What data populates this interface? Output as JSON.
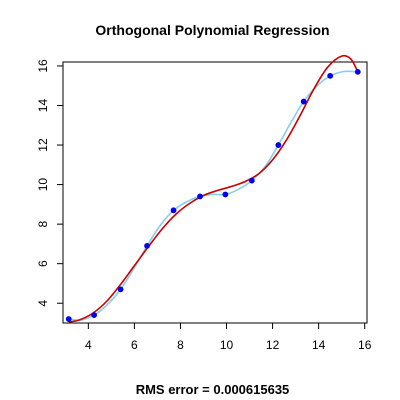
{
  "chart_data": {
    "type": "scatter",
    "title": "Orthogonal Polynomial Regression",
    "footer": "RMS error = 0.000615635",
    "xlim": [
      2.9,
      16.1
    ],
    "ylim": [
      3.0,
      16.2
    ],
    "x_ticks": [
      4,
      6,
      8,
      10,
      12,
      14,
      16
    ],
    "y_ticks": [
      4,
      6,
      8,
      10,
      12,
      14,
      16
    ],
    "colors": {
      "points": "#0000ee",
      "interpolant": "#87ceeb",
      "fit": "#cc0000",
      "axis": "#000000"
    },
    "points": {
      "x": [
        3.15,
        4.25,
        5.4,
        6.55,
        7.7,
        8.85,
        9.95,
        11.1,
        12.25,
        13.35,
        14.5,
        15.7
      ],
      "y": [
        3.2,
        3.4,
        4.7,
        6.9,
        8.7,
        9.4,
        9.5,
        10.2,
        12.0,
        14.2,
        15.5,
        15.7
      ]
    },
    "series": [
      {
        "style": "smooth interpolant",
        "x": [
          3.15,
          3.7,
          4.25,
          4.8,
          5.4,
          6.0,
          6.55,
          7.1,
          7.7,
          8.3,
          8.85,
          9.4,
          9.95,
          10.5,
          11.1,
          11.7,
          12.25,
          12.8,
          13.35,
          13.9,
          14.5,
          15.1,
          15.7
        ],
        "y": [
          3.2,
          3.15,
          3.4,
          3.9,
          4.7,
          5.8,
          6.9,
          7.9,
          8.7,
          9.15,
          9.4,
          9.5,
          9.5,
          9.75,
          10.2,
          10.95,
          12.0,
          13.15,
          14.2,
          14.95,
          15.5,
          15.72,
          15.7
        ]
      },
      {
        "style": "polynomial fit",
        "x": [
          3.15,
          3.6,
          4.2,
          4.8,
          5.4,
          6.0,
          6.6,
          7.2,
          7.8,
          8.4,
          9.0,
          9.6,
          10.2,
          10.8,
          11.4,
          12.0,
          12.6,
          13.2,
          13.8,
          14.4,
          15.0,
          15.4,
          15.7
        ],
        "y": [
          3.05,
          3.15,
          3.5,
          4.1,
          4.95,
          5.9,
          6.85,
          7.75,
          8.5,
          9.05,
          9.45,
          9.7,
          9.9,
          10.15,
          10.55,
          11.25,
          12.25,
          13.5,
          14.85,
          15.95,
          16.5,
          16.35,
          15.7
        ]
      }
    ]
  }
}
